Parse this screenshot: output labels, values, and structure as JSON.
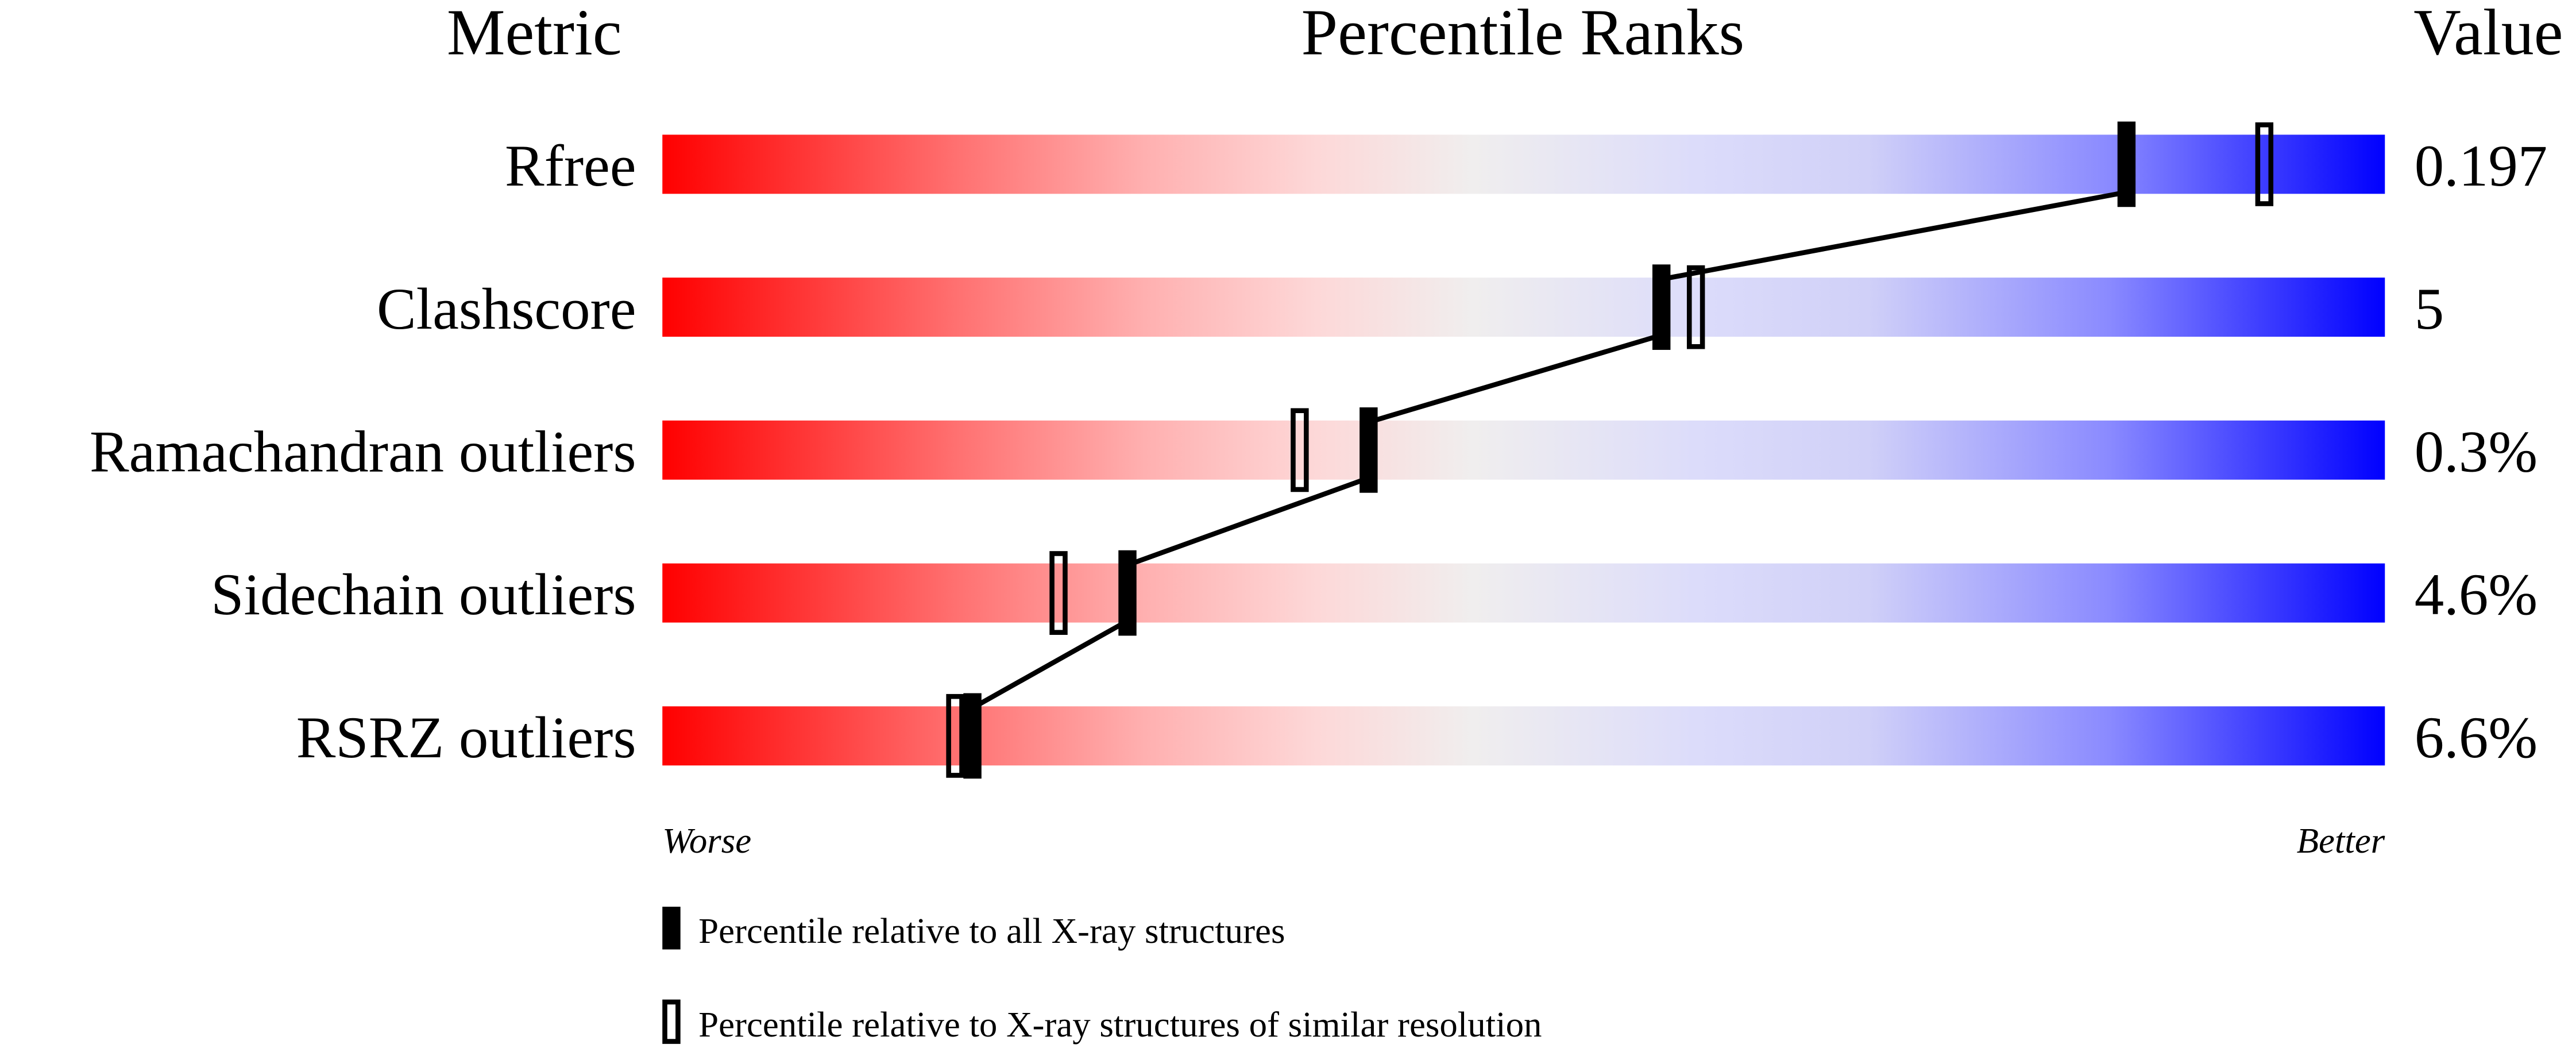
{
  "chart_data": {
    "type": "percentile-slider",
    "headers": {
      "metric": "Metric",
      "ranks": "Percentile Ranks",
      "value": "Value"
    },
    "xlim": [
      0,
      100
    ],
    "axis_labels": {
      "left": "Worse",
      "right": "Better"
    },
    "rows": [
      {
        "metric": "Rfree",
        "value": "0.197",
        "percentile_all": 85,
        "percentile_similar": 93
      },
      {
        "metric": "Clashscore",
        "value": "5",
        "percentile_all": 58,
        "percentile_similar": 60
      },
      {
        "metric": "Ramachandran outliers",
        "value": "0.3%",
        "percentile_all": 41,
        "percentile_similar": 37
      },
      {
        "metric": "Sidechain outliers",
        "value": "4.6%",
        "percentile_all": 27,
        "percentile_similar": 23
      },
      {
        "metric": "RSRZ outliers",
        "value": "6.6%",
        "percentile_all": 18,
        "percentile_similar": 17
      }
    ],
    "legend": [
      {
        "marker": "filled",
        "label": "Percentile relative to all X-ray structures"
      },
      {
        "marker": "open",
        "label": "Percentile relative to X-ray structures of similar resolution"
      }
    ],
    "colors": {
      "worse": "#ff0000",
      "middle": "#f0f0f0",
      "better": "#0000ff",
      "marker": "#000000"
    }
  }
}
